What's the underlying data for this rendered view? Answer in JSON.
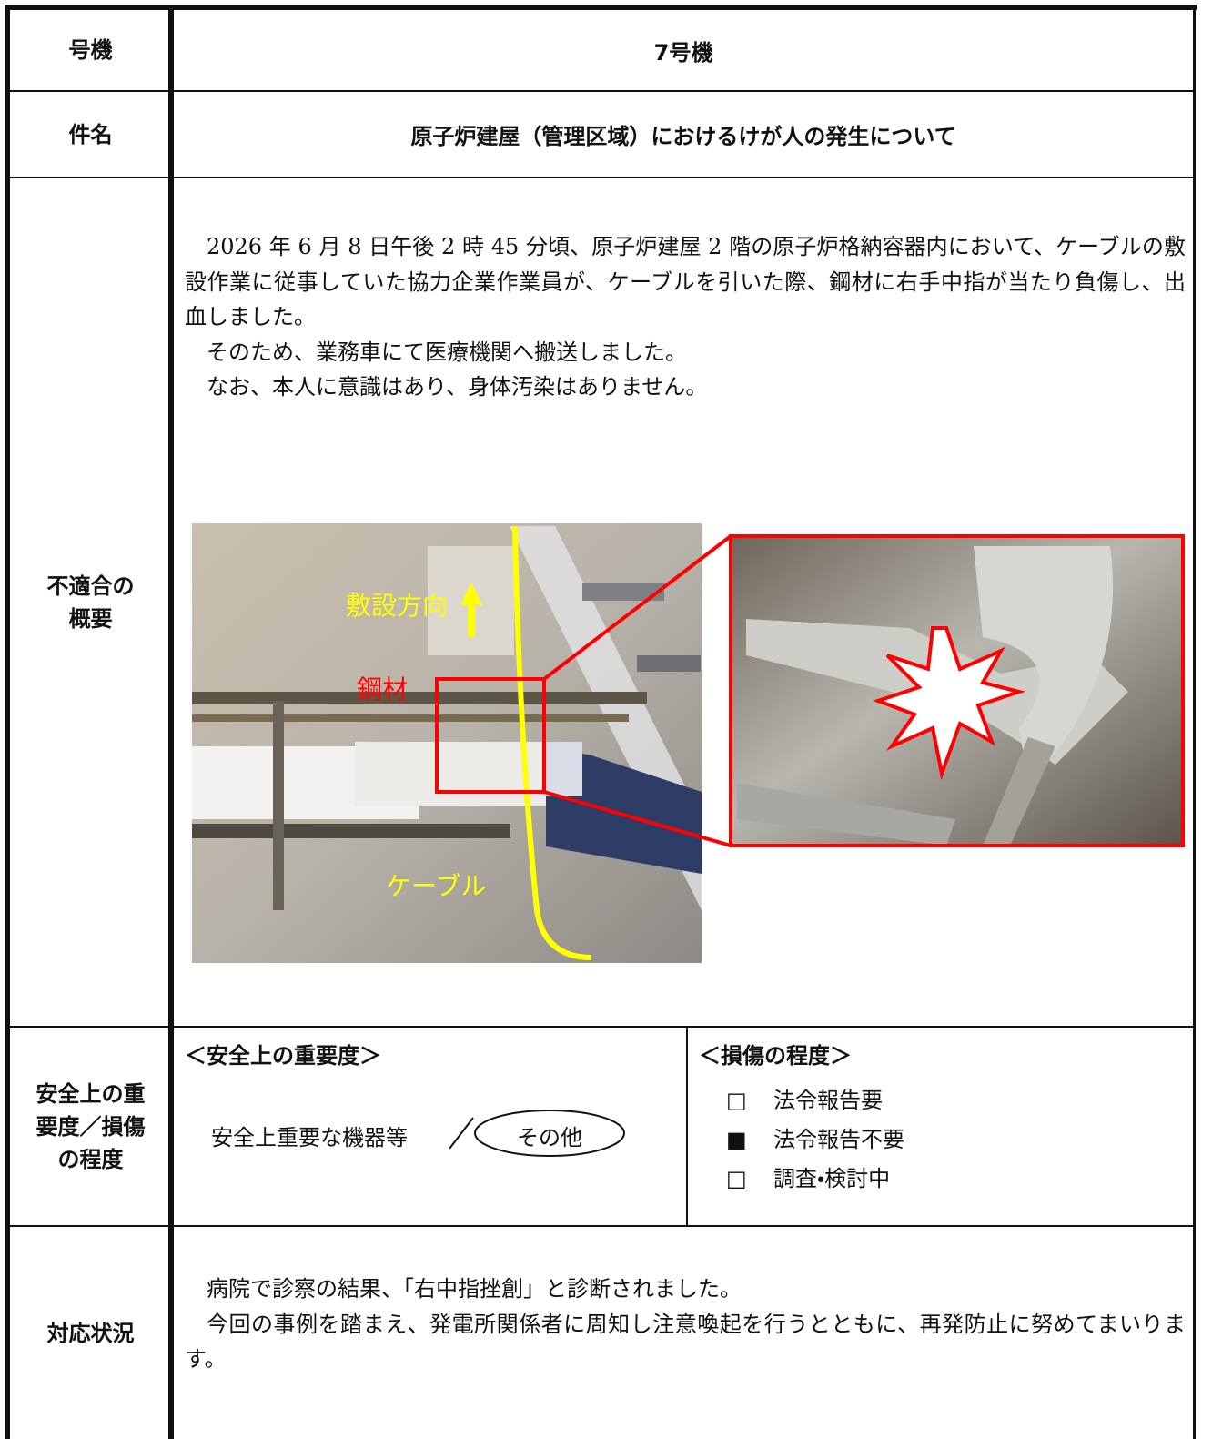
{
  "unit": {
    "label": "号機",
    "value": "7号機"
  },
  "subject": {
    "label": "件名",
    "value": "原子炉建屋（管理区域）におけるけが人の発生について"
  },
  "summary": {
    "label_lines": [
      "不適合の",
      "概要"
    ],
    "paragraphs": [
      "2026 年 6 月 8 日午後 2 時 45 分頃、原子炉建屋 2 階の原子炉格納容器内において、ケーブルの敷設作業に従事していた協力企業作業員が、ケーブルを引いた際、鋼材に右手中指が当たり負傷し、出血しました。",
      "そのため、業務車にて医療機関へ搬送しました。",
      "なお、本人に意識はあり、身体汚染はありません。"
    ],
    "photo_annotations": {
      "direction": "敷設方向",
      "steel": "鋼材",
      "cable": "ケーブル"
    }
  },
  "severity": {
    "label_lines": [
      "安全上の重",
      "要度／損傷",
      "の程度"
    ],
    "importance": {
      "heading": "＜安全上の重要度＞",
      "options": [
        "安全上重要な機器等",
        "その他"
      ]
    },
    "damage": {
      "heading": "＜損傷の程度＞",
      "items": [
        {
          "mark": "□",
          "text": "法令報告要"
        },
        {
          "mark": "■",
          "text": "法令報告不要"
        },
        {
          "mark": "□",
          "text": "調査・検討中"
        }
      ]
    }
  },
  "response": {
    "label": "対応状況",
    "paragraphs": [
      "病院で診察の結果、「右中指挫創」と診断されました。",
      "今回の事例を踏まえ、発電所関係者に周知し注意喚起を行うとともに、再発防止に努めてまいります。"
    ]
  }
}
